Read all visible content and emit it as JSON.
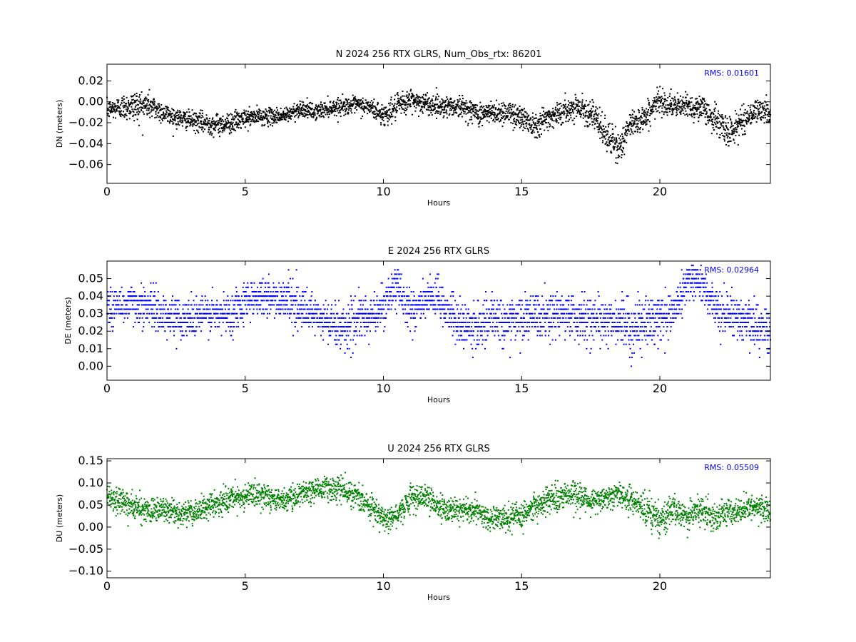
{
  "chart_data": [
    {
      "type": "scatter",
      "title": "N 2024 256 RTX  GLRS, Num_Obs_rtx: 86201",
      "xlabel": "Hours",
      "ylabel": "DN (meters)",
      "xlim": [
        0,
        24
      ],
      "ylim": [
        -0.078,
        0.036
      ],
      "xticks": [
        "0",
        "5",
        "10",
        "15",
        "20"
      ],
      "yticks": [
        "0.02",
        "0.00",
        "−0.02",
        "−0.04",
        "−0.06"
      ],
      "color": "#000000",
      "annotation": "RMS:  0.01601",
      "annotation_color": "#0000ff",
      "grid": false,
      "series": [
        {
          "x": [
            0,
            0.5,
            1,
            1.5,
            2,
            2.5,
            3,
            3.5,
            4,
            4.5,
            5,
            5.5,
            6,
            6.5,
            7,
            7.5,
            8,
            8.5,
            9,
            9.5,
            10,
            10.5,
            11,
            11.5,
            12,
            12.5,
            13,
            13.5,
            14,
            14.5,
            15,
            15.5,
            16,
            16.5,
            17,
            17.5,
            18,
            18.5,
            19,
            19.5,
            20,
            20.5,
            21,
            21.5,
            22,
            22.5,
            23,
            23.5,
            24
          ],
          "y": [
            -0.008,
            -0.005,
            -0.004,
            -0.003,
            -0.01,
            -0.015,
            -0.018,
            -0.02,
            -0.022,
            -0.02,
            -0.016,
            -0.014,
            -0.014,
            -0.013,
            -0.006,
            -0.01,
            -0.006,
            -0.004,
            -0.003,
            -0.005,
            -0.013,
            -0.005,
            0.002,
            -0.002,
            -0.004,
            -0.004,
            -0.006,
            -0.012,
            -0.01,
            -0.01,
            -0.015,
            -0.022,
            -0.014,
            -0.01,
            -0.004,
            -0.01,
            -0.03,
            -0.045,
            -0.02,
            -0.014,
            0.002,
            -0.005,
            -0.004,
            -0.006,
            -0.017,
            -0.03,
            -0.018,
            -0.008,
            -0.01
          ],
          "spread": [
            0.008,
            0.01,
            0.014,
            0.012,
            0.009,
            0.008,
            0.008,
            0.009,
            0.009,
            0.009,
            0.008,
            0.007,
            0.007,
            0.007,
            0.007,
            0.007,
            0.007,
            0.007,
            0.007,
            0.008,
            0.009,
            0.01,
            0.01,
            0.009,
            0.009,
            0.009,
            0.009,
            0.01,
            0.01,
            0.01,
            0.011,
            0.011,
            0.01,
            0.01,
            0.009,
            0.012,
            0.014,
            0.013,
            0.012,
            0.011,
            0.01,
            0.01,
            0.01,
            0.011,
            0.012,
            0.013,
            0.011,
            0.01,
            0.01
          ]
        }
      ]
    },
    {
      "type": "scatter",
      "title": "E 2024 256 RTX  GLRS",
      "xlabel": "Hours",
      "ylabel": "DE (meters)",
      "xlim": [
        0,
        24
      ],
      "ylim": [
        -0.008,
        0.06
      ],
      "xticks": [
        "0",
        "5",
        "10",
        "15",
        "20"
      ],
      "yticks": [
        "0.05",
        "0.04",
        "0.03",
        "0.02",
        "0.01",
        "0.00"
      ],
      "color": "#0000ff",
      "annotation": "RMS:  0.02964",
      "annotation_color": "#0000ff",
      "grid": false,
      "series": [
        {
          "x": [
            0,
            0.5,
            1,
            1.5,
            2,
            2.5,
            3,
            3.5,
            4,
            4.5,
            5,
            5.5,
            6,
            6.5,
            7,
            7.5,
            8,
            8.5,
            9,
            9.5,
            10,
            10.5,
            11,
            11.5,
            12,
            12.5,
            13,
            13.5,
            14,
            14.5,
            15,
            15.5,
            16,
            16.5,
            17,
            17.5,
            18,
            18.5,
            19,
            19.5,
            20,
            20.5,
            21,
            21.5,
            22,
            22.5,
            23,
            23.5,
            24
          ],
          "y": [
            0.033,
            0.035,
            0.036,
            0.034,
            0.03,
            0.027,
            0.028,
            0.03,
            0.029,
            0.03,
            0.038,
            0.04,
            0.038,
            0.04,
            0.032,
            0.028,
            0.025,
            0.022,
            0.026,
            0.028,
            0.035,
            0.045,
            0.032,
            0.036,
            0.038,
            0.028,
            0.022,
            0.024,
            0.027,
            0.026,
            0.027,
            0.028,
            0.029,
            0.03,
            0.028,
            0.027,
            0.026,
            0.025,
            0.022,
            0.025,
            0.028,
            0.03,
            0.05,
            0.048,
            0.033,
            0.03,
            0.028,
            0.022,
            0.02
          ],
          "spread": [
            0.01,
            0.01,
            0.01,
            0.01,
            0.01,
            0.01,
            0.01,
            0.01,
            0.01,
            0.01,
            0.01,
            0.01,
            0.01,
            0.01,
            0.01,
            0.011,
            0.011,
            0.011,
            0.011,
            0.011,
            0.011,
            0.01,
            0.011,
            0.011,
            0.011,
            0.012,
            0.011,
            0.011,
            0.011,
            0.011,
            0.011,
            0.011,
            0.011,
            0.011,
            0.011,
            0.011,
            0.011,
            0.011,
            0.012,
            0.012,
            0.011,
            0.011,
            0.008,
            0.008,
            0.011,
            0.011,
            0.011,
            0.012,
            0.012
          ]
        }
      ]
    },
    {
      "type": "scatter",
      "title": "U 2024 256 RTX  GLRS",
      "xlabel": "Hours",
      "ylabel": "DU (meters)",
      "xlim": [
        0,
        24
      ],
      "ylim": [
        -0.115,
        0.155
      ],
      "xticks": [
        "0",
        "5",
        "10",
        "15",
        "20"
      ],
      "yticks": [
        "0.15",
        "0.10",
        "0.05",
        "0.00",
        "−0.05",
        "−0.10"
      ],
      "color": "#008000",
      "annotation": "RMS:  0.05509",
      "annotation_color": "#0000ff",
      "grid": false,
      "series": [
        {
          "x": [
            0,
            0.5,
            1,
            1.5,
            2,
            2.5,
            3,
            3.5,
            4,
            4.5,
            5,
            5.5,
            6,
            6.5,
            7,
            7.5,
            8,
            8.5,
            9,
            9.5,
            10,
            10.5,
            11,
            11.5,
            12,
            12.5,
            13,
            13.5,
            14,
            14.5,
            15,
            15.5,
            16,
            16.5,
            17,
            17.5,
            18,
            18.5,
            19,
            19.5,
            20,
            20.5,
            21,
            21.5,
            22,
            22.5,
            23,
            23.5,
            24
          ],
          "y": [
            0.07,
            0.06,
            0.045,
            0.035,
            0.04,
            0.035,
            0.03,
            0.04,
            0.055,
            0.06,
            0.07,
            0.075,
            0.065,
            0.06,
            0.075,
            0.085,
            0.09,
            0.085,
            0.07,
            0.05,
            0.02,
            0.03,
            0.065,
            0.07,
            0.045,
            0.035,
            0.04,
            0.03,
            0.02,
            0.02,
            0.025,
            0.045,
            0.065,
            0.075,
            0.07,
            0.06,
            0.065,
            0.075,
            0.06,
            0.04,
            0.02,
            0.035,
            0.025,
            0.04,
            0.02,
            0.035,
            0.04,
            0.045,
            0.035
          ],
          "spread": [
            0.025,
            0.025,
            0.025,
            0.025,
            0.025,
            0.025,
            0.025,
            0.025,
            0.025,
            0.025,
            0.025,
            0.025,
            0.025,
            0.025,
            0.025,
            0.025,
            0.025,
            0.025,
            0.025,
            0.025,
            0.025,
            0.025,
            0.025,
            0.025,
            0.025,
            0.025,
            0.025,
            0.025,
            0.025,
            0.025,
            0.025,
            0.025,
            0.028,
            0.028,
            0.028,
            0.025,
            0.025,
            0.025,
            0.028,
            0.035,
            0.035,
            0.028,
            0.025,
            0.025,
            0.03,
            0.025,
            0.025,
            0.025,
            0.025
          ]
        }
      ]
    }
  ]
}
